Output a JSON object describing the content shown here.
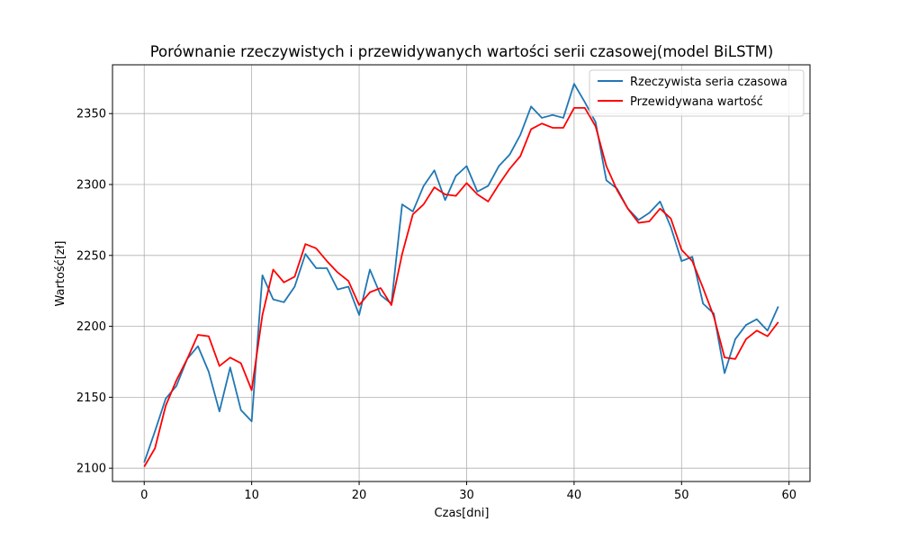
{
  "chart_data": {
    "type": "line",
    "title": "Porównanie rzeczywistych i przewidywanych wartości serii czasowej(model BiLSTM)",
    "xlabel": "Czas[dni]",
    "ylabel": "Wartość[zł]",
    "xlim": [
      -2.95,
      61.95
    ],
    "ylim": [
      2090.6,
      2384.4
    ],
    "xticks": [
      0,
      10,
      20,
      30,
      40,
      50,
      60
    ],
    "yticks": [
      2100,
      2150,
      2200,
      2250,
      2300,
      2350
    ],
    "grid": true,
    "legend_position": "top-right",
    "x": [
      0,
      1,
      2,
      3,
      4,
      5,
      6,
      7,
      8,
      9,
      10,
      11,
      12,
      13,
      14,
      15,
      16,
      17,
      18,
      19,
      20,
      21,
      22,
      23,
      24,
      25,
      26,
      27,
      28,
      29,
      30,
      31,
      32,
      33,
      34,
      35,
      36,
      37,
      38,
      39,
      40,
      41,
      42,
      43,
      44,
      45,
      46,
      47,
      48,
      49,
      50,
      51,
      52,
      53,
      54,
      55,
      56,
      57,
      58,
      59
    ],
    "series": [
      {
        "name": "Rzeczywista seria czasowa",
        "color": "#1f77b4",
        "values": [
          2104,
          2126,
          2149,
          2158,
          2177,
          2186,
          2168,
          2140,
          2171,
          2141,
          2133,
          2236,
          2219,
          2217,
          2228,
          2251,
          2241,
          2241,
          2226,
          2228,
          2208,
          2240,
          2222,
          2216,
          2286,
          2281,
          2299,
          2310,
          2289,
          2306,
          2313,
          2295,
          2299,
          2313,
          2321,
          2335,
          2355,
          2347,
          2349,
          2347,
          2371,
          2358,
          2344,
          2303,
          2297,
          2283,
          2275,
          2280,
          2288,
          2270,
          2246,
          2249,
          2216,
          2209,
          2167,
          2191,
          2201,
          2205,
          2197,
          2214
        ]
      },
      {
        "name": "Przewidywana wartość",
        "color": "#ff0000",
        "values": [
          2101,
          2114,
          2144,
          2162,
          2177,
          2194,
          2193,
          2172,
          2178,
          2174,
          2155,
          2208,
          2240,
          2231,
          2235,
          2258,
          2255,
          2246,
          2238,
          2232,
          2215,
          2224,
          2227,
          2215,
          2251,
          2279,
          2286,
          2298,
          2293,
          2292,
          2301,
          2293,
          2288,
          2300,
          2311,
          2320,
          2339,
          2343,
          2340,
          2340,
          2354,
          2354,
          2341,
          2313,
          2296,
          2283,
          2273,
          2274,
          2283,
          2276,
          2254,
          2246,
          2227,
          2207,
          2178,
          2177,
          2191,
          2197,
          2193,
          2203
        ]
      }
    ]
  }
}
